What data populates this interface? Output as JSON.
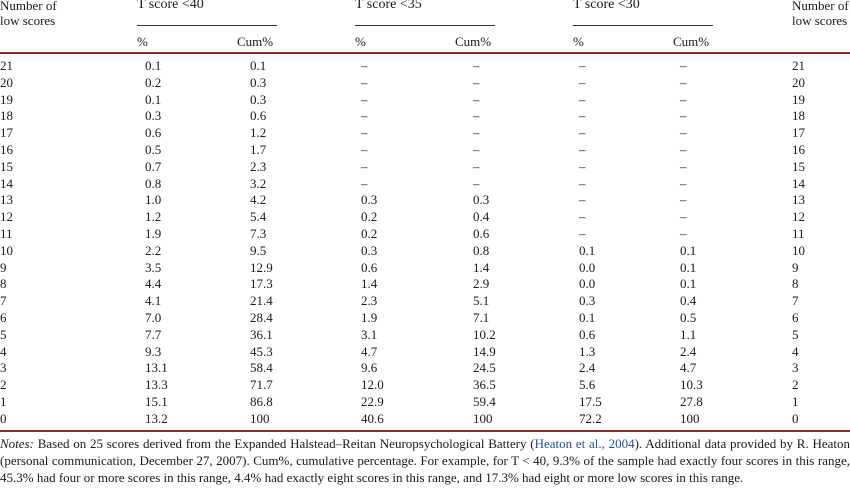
{
  "header": {
    "left_label_line1": "Number of",
    "left_label_line2": "low scores",
    "right_label_line1": "Number of",
    "right_label_line2": "low scores",
    "groups": [
      {
        "title": "T score <40",
        "pct": "%",
        "cum": "Cum%"
      },
      {
        "title": "T score <35",
        "pct": "%",
        "cum": "Cum%"
      },
      {
        "title": "T score <30",
        "pct": "%",
        "cum": "Cum%"
      }
    ]
  },
  "rows": [
    [
      "21",
      "0.1",
      "0.1",
      "–",
      "–",
      "–",
      "–",
      "21"
    ],
    [
      "20",
      "0.2",
      "0.3",
      "–",
      "–",
      "–",
      "–",
      "20"
    ],
    [
      "19",
      "0.1",
      "0.3",
      "–",
      "–",
      "–",
      "–",
      "19"
    ],
    [
      "18",
      "0.3",
      "0.6",
      "–",
      "–",
      "–",
      "–",
      "18"
    ],
    [
      "17",
      "0.6",
      "1.2",
      "–",
      "–",
      "–",
      "–",
      "17"
    ],
    [
      "16",
      "0.5",
      "1.7",
      "–",
      "–",
      "–",
      "–",
      "16"
    ],
    [
      "15",
      "0.7",
      "2.3",
      "–",
      "–",
      "–",
      "–",
      "15"
    ],
    [
      "14",
      "0.8",
      "3.2",
      "–",
      "–",
      "–",
      "–",
      "14"
    ],
    [
      "13",
      "1.0",
      "4.2",
      "0.3",
      "0.3",
      "–",
      "–",
      "13"
    ],
    [
      "12",
      "1.2",
      "5.4",
      "0.2",
      "0.4",
      "–",
      "–",
      "12"
    ],
    [
      "11",
      "1.9",
      "7.3",
      "0.2",
      "0.6",
      "–",
      "–",
      "11"
    ],
    [
      "10",
      "2.2",
      "9.5",
      "0.3",
      "0.8",
      "0.1",
      "0.1",
      "10"
    ],
    [
      "9",
      "3.5",
      "12.9",
      "0.6",
      "1.4",
      "0.0",
      "0.1",
      "9"
    ],
    [
      "8",
      "4.4",
      "17.3",
      "1.4",
      "2.9",
      "0.0",
      "0.1",
      "8"
    ],
    [
      "7",
      "4.1",
      "21.4",
      "2.3",
      "5.1",
      "0.3",
      "0.4",
      "7"
    ],
    [
      "6",
      "7.0",
      "28.4",
      "1.9",
      "7.1",
      "0.1",
      "0.5",
      "6"
    ],
    [
      "5",
      "7.7",
      "36.1",
      "3.1",
      "10.2",
      "0.6",
      "1.1",
      "5"
    ],
    [
      "4",
      "9.3",
      "45.3",
      "4.7",
      "14.9",
      "1.3",
      "2.4",
      "4"
    ],
    [
      "3",
      "13.1",
      "58.4",
      "9.6",
      "24.5",
      "2.4",
      "4.7",
      "3"
    ],
    [
      "2",
      "13.3",
      "71.7",
      "12.0",
      "36.5",
      "5.6",
      "10.3",
      "2"
    ],
    [
      "1",
      "15.1",
      "86.8",
      "22.9",
      "59.4",
      "17.5",
      "27.8",
      "1"
    ],
    [
      "0",
      "13.2",
      "100",
      "40.6",
      "100",
      "72.2",
      "100",
      "0"
    ]
  ],
  "notes": {
    "label": "Notes:",
    "text_a": " Based on 25 scores derived from the Expanded Halstead–Reitan Neuropsychological Battery (",
    "citation": "Heaton et al., 2004",
    "text_b": "). Additional data provided by R. Heaton (personal communication, December 27, 2007). Cum%, cumulative percentage. For example, for T < 40, 9.3% of the sample had exactly four scores in this range, 45.3% had four or more scores in this range, 4.4% had exactly eight scores in this range, and 17.3% had eight or more low scores in this range."
  },
  "colors": {
    "rule": "#333333",
    "thick_rule": "#8c2c2c",
    "link": "#1f4e9c"
  }
}
